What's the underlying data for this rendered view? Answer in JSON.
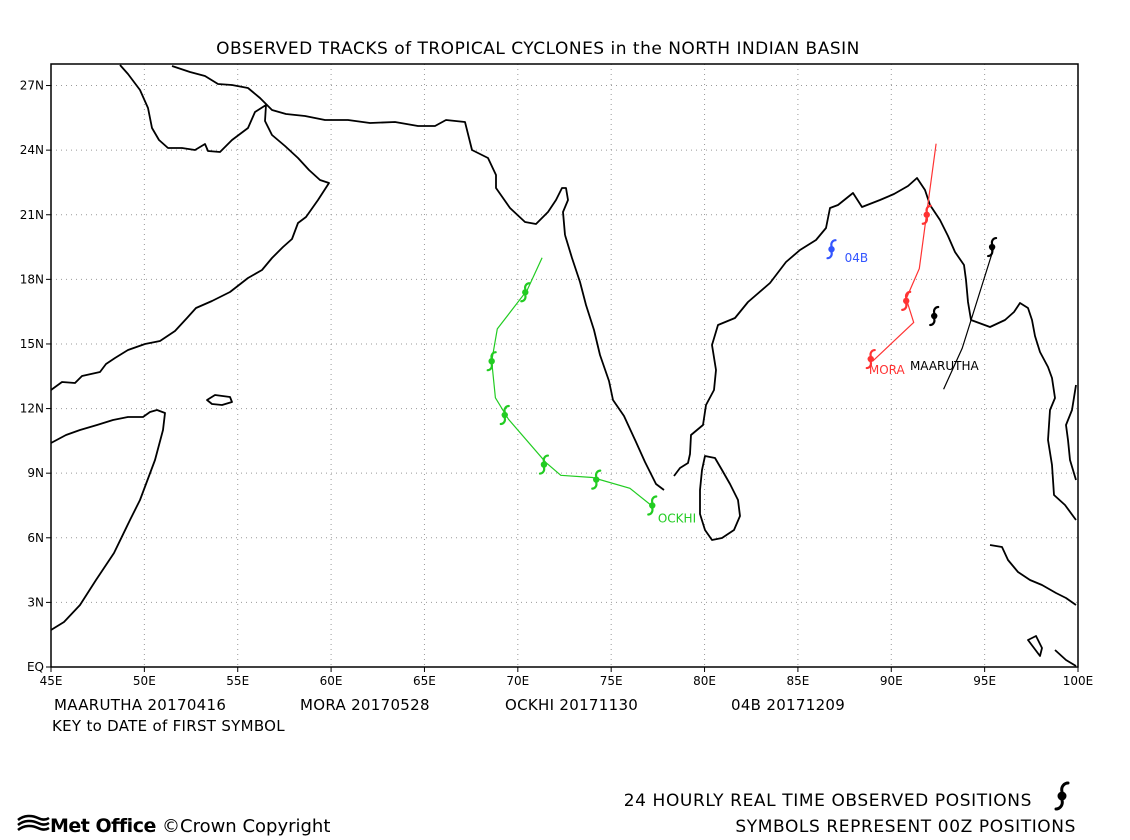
{
  "title": "OBSERVED TRACKS of TROPICAL CYCLONES in the NORTH INDIAN BASIN",
  "axes": {
    "x_ticks": [
      {
        "lon": 45,
        "label": "45E"
      },
      {
        "lon": 50,
        "label": "50E"
      },
      {
        "lon": 55,
        "label": "55E"
      },
      {
        "lon": 60,
        "label": "60E"
      },
      {
        "lon": 65,
        "label": "65E"
      },
      {
        "lon": 70,
        "label": "70E"
      },
      {
        "lon": 75,
        "label": "75E"
      },
      {
        "lon": 80,
        "label": "80E"
      },
      {
        "lon": 85,
        "label": "85E"
      },
      {
        "lon": 90,
        "label": "90E"
      },
      {
        "lon": 95,
        "label": "95E"
      },
      {
        "lon": 100,
        "label": "100E"
      }
    ],
    "y_ticks": [
      {
        "lat": 0,
        "label": "EQ"
      },
      {
        "lat": 3,
        "label": "3N"
      },
      {
        "lat": 6,
        "label": "6N"
      },
      {
        "lat": 9,
        "label": "9N"
      },
      {
        "lat": 12,
        "label": "12N"
      },
      {
        "lat": 15,
        "label": "15N"
      },
      {
        "lat": 18,
        "label": "18N"
      },
      {
        "lat": 21,
        "label": "21N"
      },
      {
        "lat": 24,
        "label": "24N"
      },
      {
        "lat": 27,
        "label": "27N"
      }
    ],
    "lon_range": [
      45,
      100
    ],
    "lat_range": [
      0,
      28
    ],
    "grid": "dotted"
  },
  "storms": [
    {
      "name": "MAARUTHA",
      "color": "#000000",
      "track": [
        [
          92.8,
          12.9
        ],
        [
          93.8,
          14.8
        ],
        [
          95.5,
          19.5
        ]
      ],
      "symbols": [
        [
          92.3,
          16.3
        ],
        [
          95.4,
          19.5
        ]
      ],
      "label_pos": [
        91.0,
        13.8
      ]
    },
    {
      "name": "MORA",
      "color": "#ff3333",
      "track": [
        [
          89.0,
          14.2
        ],
        [
          91.2,
          16.0
        ],
        [
          90.8,
          17.1
        ],
        [
          91.5,
          18.5
        ],
        [
          91.9,
          21.1
        ],
        [
          92.4,
          24.3
        ]
      ],
      "symbols": [
        [
          88.9,
          14.3
        ],
        [
          90.8,
          17.0
        ],
        [
          91.9,
          21.0
        ]
      ],
      "label_pos": [
        88.8,
        13.6
      ]
    },
    {
      "name": "OCKHI",
      "color": "#22cc22",
      "track": [
        [
          77.3,
          7.4
        ],
        [
          76.0,
          8.3
        ],
        [
          74.0,
          8.8
        ],
        [
          72.3,
          8.9
        ],
        [
          71.5,
          9.5
        ],
        [
          69.5,
          11.5
        ],
        [
          68.8,
          12.5
        ],
        [
          68.6,
          14.2
        ],
        [
          68.9,
          15.7
        ],
        [
          70.5,
          17.5
        ],
        [
          71.3,
          19.0
        ]
      ],
      "symbols": [
        [
          77.2,
          7.5
        ],
        [
          74.2,
          8.7
        ],
        [
          71.4,
          9.4
        ],
        [
          69.3,
          11.7
        ],
        [
          68.6,
          14.2
        ],
        [
          70.4,
          17.4
        ]
      ],
      "label_pos": [
        77.5,
        6.7
      ]
    },
    {
      "name": "04B",
      "color": "#3355ff",
      "track": [
        [
          86.8,
          19.4
        ]
      ],
      "symbols": [
        [
          86.8,
          19.4
        ]
      ],
      "label_pos": [
        87.5,
        18.8
      ]
    }
  ],
  "key": {
    "entries": [
      "MAARUTHA 20170416",
      "MORA 20170528",
      "OCKHI 20171130",
      "04B 20171209"
    ],
    "caption": "KEY to DATE of FIRST SYMBOL"
  },
  "notes": {
    "line1": "24 HOURLY REAL TIME OBSERVED POSITIONS",
    "line2": "SYMBOLS REPRESENT 00Z POSITIONS"
  },
  "logo": {
    "text": "Met Office",
    "icon": "met-office-waves-icon"
  },
  "copyright": "©Crown Copyright"
}
